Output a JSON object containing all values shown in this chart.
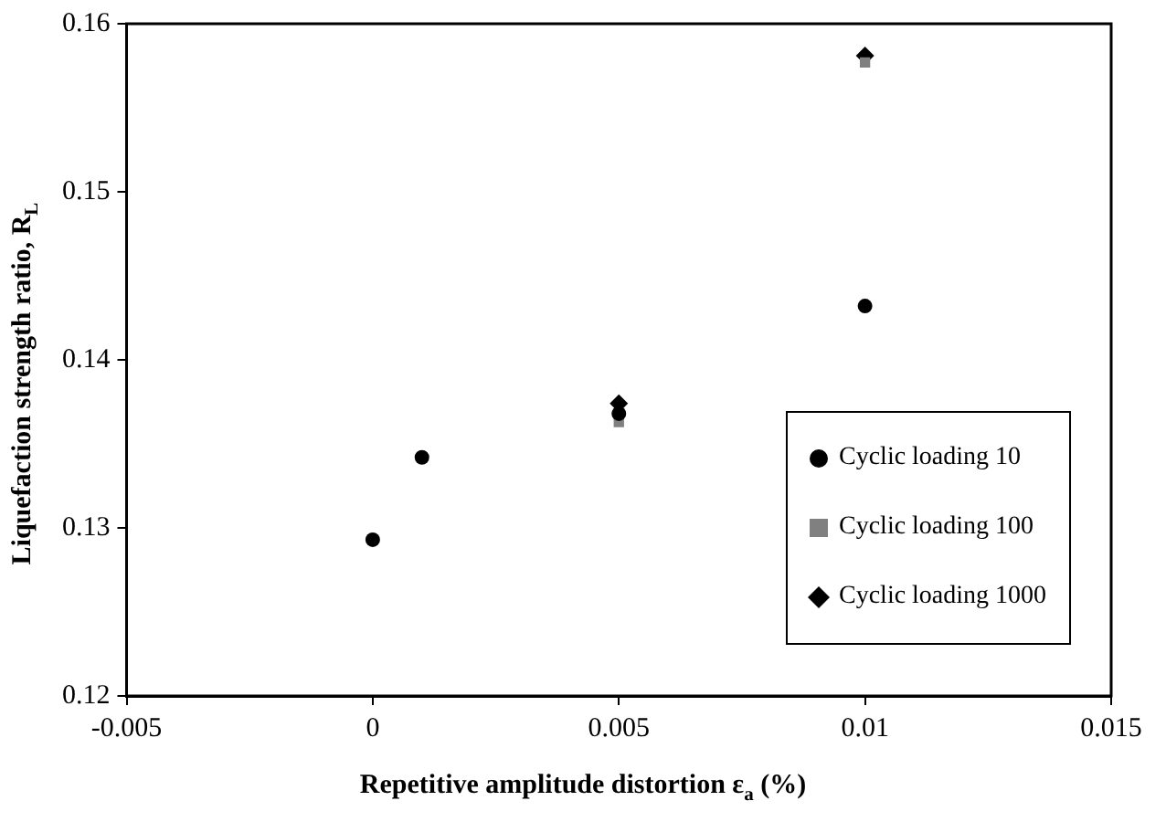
{
  "chart_data": {
    "type": "scatter",
    "xlabel": "Repetitive amplitude distortion ε$_{a}$ (%)",
    "ylabel": "Liquefaction strength ratio, R$_{L}$",
    "xlim": [
      -0.005,
      0.015
    ],
    "xticks": [
      -0.005,
      0,
      0.005,
      0.01,
      0.015
    ],
    "ylim": [
      0.12,
      0.16
    ],
    "yticks": [
      0.12,
      0.13,
      0.14,
      0.15,
      0.16
    ],
    "grid": false,
    "legend": "bottom right",
    "series": [
      {
        "name": "Cyclic loading 10",
        "color": "#000000",
        "marker": "circle",
        "x": [
          0,
          0.001,
          0.005,
          0.01
        ],
        "values": [
          0.1293,
          0.1342,
          0.1368,
          0.1432
        ]
      },
      {
        "name": "Cyclic loading 100",
        "color": "#808080",
        "marker": "square",
        "x": [
          0.005,
          0.01
        ],
        "values": [
          0.1363,
          0.1577
        ]
      },
      {
        "name": "Cyclic loading 1000",
        "color": "#000000",
        "marker": "diamond",
        "x": [
          0.005,
          0.01
        ],
        "values": [
          0.1374,
          0.1581
        ]
      }
    ]
  }
}
